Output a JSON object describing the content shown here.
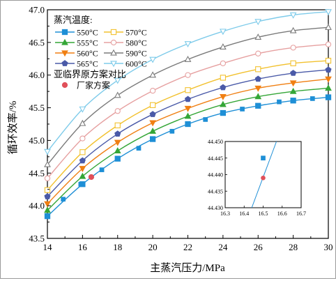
{
  "chart_data": {
    "type": "line",
    "xlabel": "主蒸汽压力/MPa",
    "ylabel": "循环效率/%",
    "xlim": [
      14,
      30
    ],
    "ylim": [
      43.5,
      47.0
    ],
    "xticks": [
      "14",
      "16",
      "18",
      "20",
      "22",
      "24",
      "26",
      "28",
      "30"
    ],
    "yticks": [
      "43.5",
      "44.0",
      "44.5",
      "45.0",
      "45.5",
      "46.0",
      "46.5",
      "47.0"
    ],
    "x": [
      14,
      16,
      18,
      20,
      22,
      24,
      26,
      28,
      30
    ],
    "legend_title": "蒸汽温度:",
    "legend_subtitle": "亚临界原方案对比",
    "series": [
      {
        "name": "550°C",
        "color": "#1e8fd6",
        "marker": "square",
        "fill": true,
        "values": [
          43.84,
          44.33,
          44.72,
          45.02,
          45.25,
          45.42,
          45.53,
          45.61,
          45.66
        ]
      },
      {
        "name": "555°C",
        "color": "#34a637",
        "marker": "triangle-up",
        "fill": true,
        "values": [
          43.93,
          44.45,
          44.84,
          45.14,
          45.37,
          45.55,
          45.67,
          45.75,
          45.8
        ]
      },
      {
        "name": "560°C",
        "color": "#f07f12",
        "marker": "triangle-down",
        "fill": true,
        "values": [
          44.03,
          44.57,
          44.97,
          45.27,
          45.49,
          45.67,
          45.8,
          45.88,
          45.94
        ]
      },
      {
        "name": "565°C",
        "color": "#4a5aa8",
        "marker": "pentagon",
        "fill": true,
        "values": [
          44.14,
          44.69,
          45.1,
          45.4,
          45.63,
          45.81,
          45.94,
          46.03,
          46.08
        ]
      },
      {
        "name": "570°C",
        "color": "#f2c12e",
        "marker": "square",
        "fill": false,
        "values": [
          44.24,
          44.82,
          45.23,
          45.54,
          45.77,
          45.96,
          46.09,
          46.18,
          46.22
        ]
      },
      {
        "name": "580°C",
        "color": "#e6a0a0",
        "marker": "circle",
        "fill": false,
        "values": [
          44.42,
          45.03,
          45.45,
          45.76,
          46.0,
          46.18,
          46.33,
          46.42,
          46.47
        ]
      },
      {
        "name": "590°C",
        "color": "#7a7a7a",
        "marker": "triangle-up",
        "fill": false,
        "values": [
          44.63,
          45.26,
          45.69,
          46.0,
          46.24,
          46.43,
          46.58,
          46.68,
          46.73
        ]
      },
      {
        "name": "600°C",
        "color": "#7ecbea",
        "marker": "triangle-down",
        "fill": false,
        "values": [
          44.83,
          45.48,
          45.92,
          46.24,
          46.48,
          46.67,
          46.82,
          46.92,
          46.97
        ]
      }
    ],
    "subcritical": {
      "name": "厂家方案",
      "color": "#e0505a",
      "x": 16.5,
      "y": 44.439
    },
    "sparse_points": {
      "x": [
        14.9,
        15.9,
        17.1,
        19.2,
        21.1,
        23.0,
        25.1,
        27.2,
        29.1
      ],
      "y": [
        44.1,
        44.33,
        44.55,
        44.88,
        45.14,
        45.32,
        45.48,
        45.59,
        45.64
      ]
    },
    "inset": {
      "xlim": [
        16.3,
        16.7
      ],
      "ylim": [
        44.43,
        44.45
      ],
      "xticks": [
        "16.3",
        "16.4",
        "16.5",
        "16.6",
        "16.7"
      ],
      "yticks": [
        "44.430",
        "44.435",
        "44.440",
        "44.445",
        "44.450"
      ],
      "line_pts": [
        [
          16.44,
          44.43
        ],
        [
          16.57,
          44.45
        ]
      ],
      "square_pt": [
        16.5,
        44.445
      ],
      "dot_pt": [
        16.5,
        44.439
      ]
    }
  }
}
